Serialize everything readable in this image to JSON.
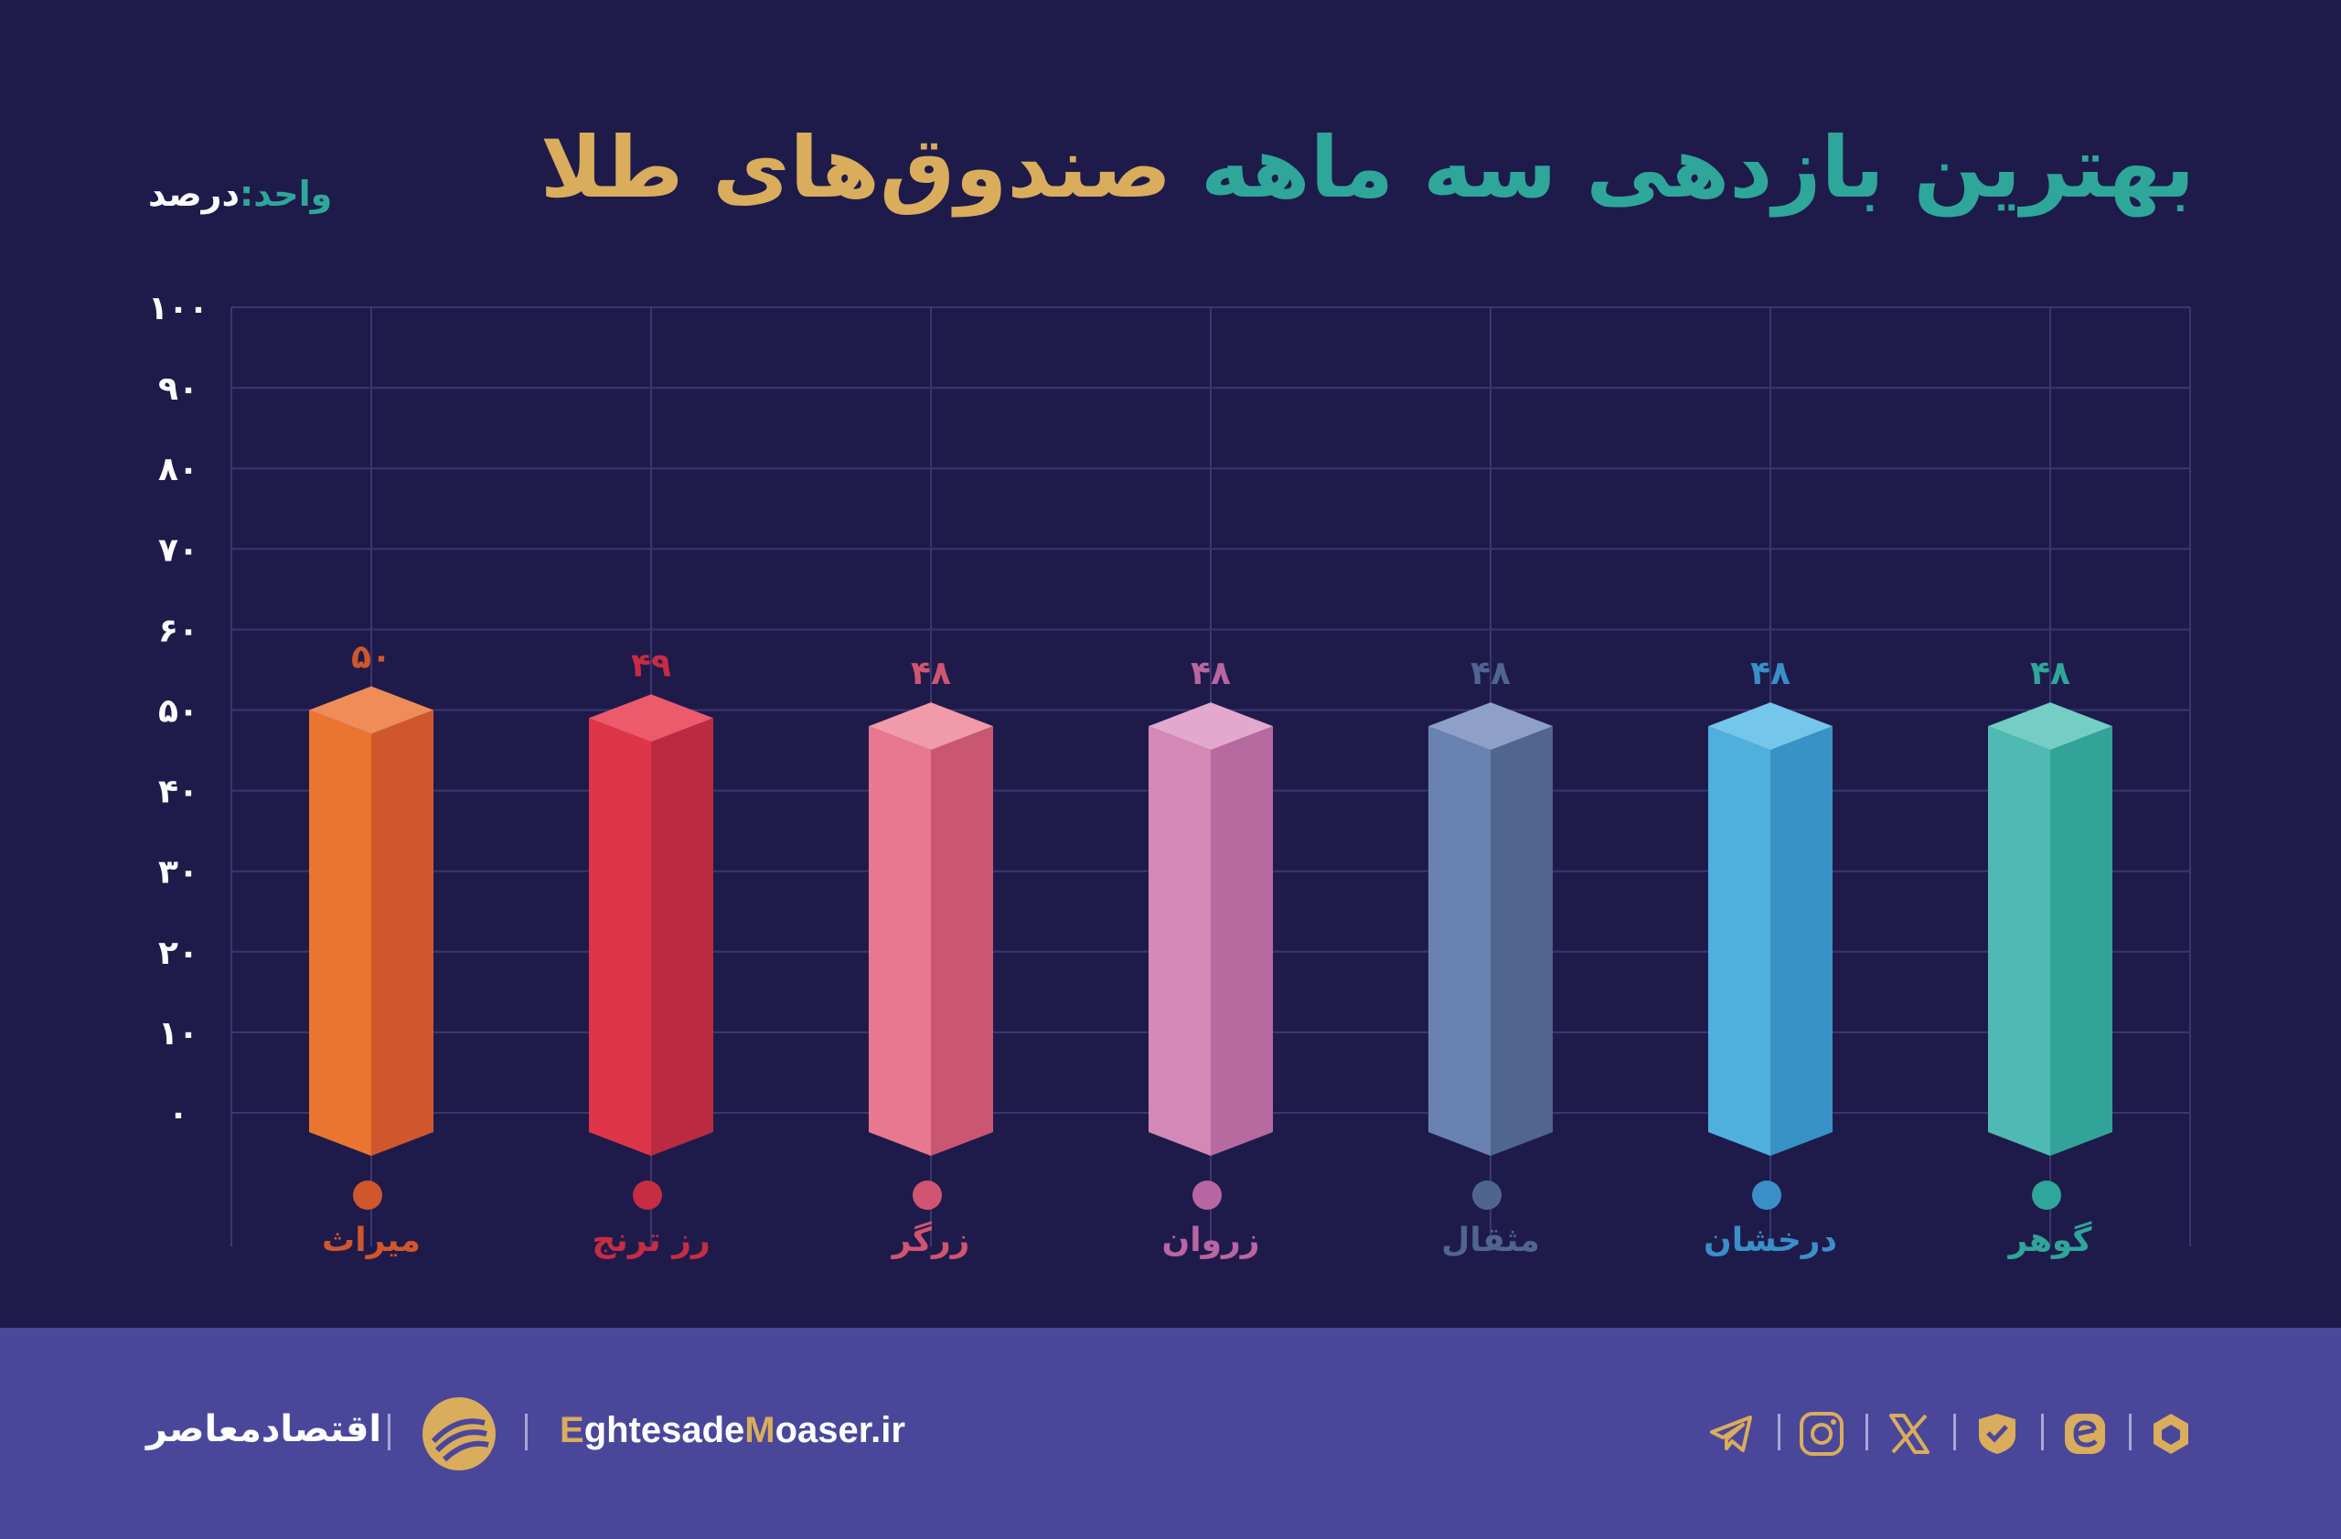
{
  "header": {
    "title_part1": "بهترین بازدهی سه ماهه",
    "title_part2": "صندوق‌های طلا",
    "unit_label": "واحد:",
    "unit_value": "درصد"
  },
  "chart_data": {
    "type": "bar",
    "title": "بهترین بازدهی سه ماهه صندوق‌های طلا",
    "ylabel": "",
    "xlabel": "",
    "ylim": [
      0,
      100
    ],
    "y_ticks": [
      "۰",
      "۱۰",
      "۲۰",
      "۳۰",
      "۴۰",
      "۵۰",
      "۶۰",
      "۷۰",
      "۸۰",
      "۹۰",
      "۱۰۰"
    ],
    "categories": [
      "میراث",
      "رز ترنج",
      "زرگر",
      "زروان",
      "مثقال",
      "درخشان",
      "گوهر"
    ],
    "values": [
      50,
      49,
      48,
      48,
      48,
      48,
      48
    ],
    "value_labels": [
      "۵۰",
      "۴۹",
      "۴۸",
      "۴۸",
      "۴۸",
      "۴۸",
      "۴۸"
    ],
    "colors": [
      {
        "front": "#ea7530",
        "side": "#d0572c",
        "top": "#f08c58",
        "label": "#d0572c"
      },
      {
        "front": "#df3549",
        "side": "#bb2a40",
        "top": "#ec5a6c",
        "label": "#c62c42"
      },
      {
        "front": "#e87890",
        "side": "#cb5672",
        "top": "#f19aaa",
        "label": "#d05570"
      },
      {
        "front": "#d488b8",
        "side": "#b66aa0",
        "top": "#e3a8cd",
        "label": "#b866a2"
      },
      {
        "front": "#6a82b2",
        "side": "#50668f",
        "top": "#8ea0c8",
        "label": "#4f6590"
      },
      {
        "front": "#4fb0de",
        "side": "#3892c5",
        "top": "#74c6ea",
        "label": "#3a8fc8"
      },
      {
        "front": "#4fbab3",
        "side": "#32a398",
        "top": "#74cec6",
        "label": "#2fa69a"
      }
    ],
    "grid": true,
    "legend": "markers-below-bars"
  },
  "footer": {
    "brand_name": "اقتصادمعاصر",
    "site_initial_1": "E",
    "site_part_1": "ghtesade",
    "site_initial_2": "M",
    "site_part_2": "oaser",
    "site_suffix": ".ir",
    "social_icons": [
      "telegram-icon",
      "instagram-icon",
      "x-icon",
      "eitaa-icon",
      "bale-icon",
      "rubika-icon"
    ]
  }
}
